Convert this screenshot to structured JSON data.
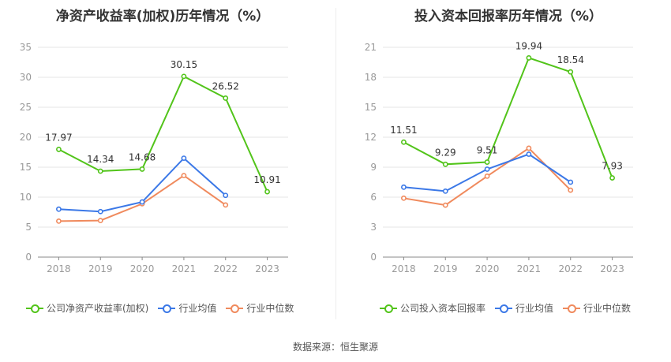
{
  "colors": {
    "company": "#52c41a",
    "industry_avg": "#3b78e7",
    "industry_median": "#f08a5d",
    "axis": "#999999",
    "grid": "#e6e6e6"
  },
  "source": "数据来源：恒生聚源",
  "chart_data": [
    {
      "type": "line",
      "title": "净资产收益率(加权)历年情况（%）",
      "categories": [
        "2018",
        "2019",
        "2020",
        "2021",
        "2022",
        "2023"
      ],
      "ylim": [
        0,
        35
      ],
      "yticks": [
        "0",
        "5",
        "10",
        "15",
        "20",
        "25",
        "30",
        "35"
      ],
      "series": [
        {
          "name": "公司净资产收益率(加权)",
          "key": "company",
          "values": [
            17.97,
            14.34,
            14.68,
            30.15,
            26.52,
            10.91
          ],
          "labels": [
            "17.97",
            "14.34",
            "14.68",
            "30.15",
            "26.52",
            "10.91"
          ]
        },
        {
          "name": "行业均值",
          "key": "industry_avg",
          "values": [
            8.0,
            7.6,
            9.2,
            16.5,
            10.3,
            null
          ]
        },
        {
          "name": "行业中位数",
          "key": "industry_median",
          "values": [
            6.0,
            6.1,
            8.9,
            13.6,
            8.7,
            null
          ]
        }
      ]
    },
    {
      "type": "line",
      "title": "投入资本回报率历年情况（%）",
      "categories": [
        "2018",
        "2019",
        "2020",
        "2021",
        "2022",
        "2023"
      ],
      "ylim": [
        0,
        21
      ],
      "yticks": [
        "0",
        "3",
        "6",
        "9",
        "12",
        "15",
        "18",
        "21"
      ],
      "series": [
        {
          "name": "公司投入资本回报率",
          "key": "company",
          "values": [
            11.51,
            9.29,
            9.51,
            19.94,
            18.54,
            7.93
          ],
          "labels": [
            "11.51",
            "9.29",
            "9.51",
            "19.94",
            "18.54",
            "7.93"
          ]
        },
        {
          "name": "行业均值",
          "key": "industry_avg",
          "values": [
            7.0,
            6.6,
            8.8,
            10.3,
            7.5,
            null
          ]
        },
        {
          "name": "行业中位数",
          "key": "industry_median",
          "values": [
            5.9,
            5.2,
            8.1,
            10.9,
            6.7,
            null
          ]
        }
      ]
    }
  ]
}
